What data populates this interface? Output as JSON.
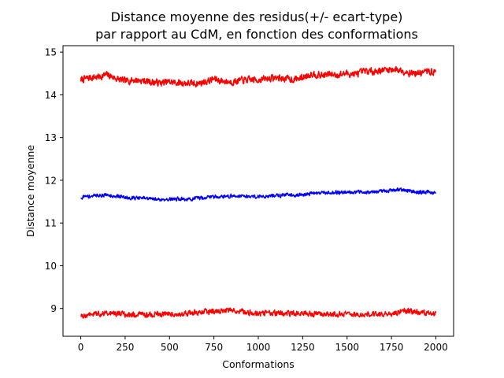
{
  "chart_data": {
    "type": "line",
    "title_lines": [
      "Distance moyenne des residus(+/- ecart-type)",
      "par rapport au CdM, en fonction des conformations"
    ],
    "xlabel": "Conformations",
    "ylabel": "Distance moyenne",
    "xlim": [
      -100,
      2100
    ],
    "ylim": [
      8.35,
      15.15
    ],
    "xticks": [
      0,
      250,
      500,
      750,
      1000,
      1250,
      1500,
      1750,
      2000
    ],
    "xtick_labels": [
      "0",
      "250",
      "500",
      "750",
      "1000",
      "1250",
      "1500",
      "1750",
      "2000"
    ],
    "yticks": [
      9,
      10,
      11,
      12,
      13,
      14,
      15
    ],
    "ytick_labels": [
      "9",
      "10",
      "11",
      "12",
      "13",
      "14",
      "15"
    ],
    "grid": false,
    "legend": "none",
    "x_range": [
      0,
      2000
    ],
    "series": [
      {
        "color": "#ff0000",
        "noise_amplitude": 0.11,
        "x": [
          0,
          50,
          100,
          150,
          200,
          250,
          300,
          350,
          400,
          450,
          500,
          550,
          600,
          650,
          700,
          750,
          800,
          850,
          900,
          950,
          1000,
          1050,
          1100,
          1150,
          1200,
          1250,
          1300,
          1350,
          1400,
          1450,
          1500,
          1550,
          1600,
          1650,
          1700,
          1750,
          1800,
          1850,
          1900,
          1950,
          2000
        ],
        "y": [
          14.35,
          14.4,
          14.42,
          14.47,
          14.38,
          14.32,
          14.35,
          14.33,
          14.3,
          14.28,
          14.3,
          14.28,
          14.27,
          14.26,
          14.3,
          14.37,
          14.32,
          14.3,
          14.34,
          14.35,
          14.35,
          14.38,
          14.4,
          14.38,
          14.36,
          14.4,
          14.5,
          14.45,
          14.48,
          14.47,
          14.5,
          14.48,
          14.55,
          14.55,
          14.58,
          14.6,
          14.58,
          14.52,
          14.5,
          14.55,
          14.52
        ]
      },
      {
        "color": "#0000ff",
        "noise_amplitude": 0.06,
        "x": [
          0,
          50,
          100,
          150,
          200,
          250,
          300,
          350,
          400,
          450,
          500,
          550,
          600,
          650,
          700,
          750,
          800,
          850,
          900,
          950,
          1000,
          1050,
          1100,
          1150,
          1200,
          1250,
          1300,
          1350,
          1400,
          1450,
          1500,
          1550,
          1600,
          1650,
          1700,
          1750,
          1800,
          1850,
          1900,
          1950,
          2000
        ],
        "y": [
          11.6,
          11.63,
          11.65,
          11.66,
          11.63,
          11.6,
          11.59,
          11.58,
          11.56,
          11.55,
          11.56,
          11.57,
          11.55,
          11.57,
          11.6,
          11.62,
          11.62,
          11.63,
          11.64,
          11.62,
          11.62,
          11.63,
          11.64,
          11.66,
          11.66,
          11.65,
          11.7,
          11.7,
          11.72,
          11.71,
          11.73,
          11.72,
          11.73,
          11.72,
          11.74,
          11.77,
          11.78,
          11.76,
          11.72,
          11.72,
          11.7
        ]
      },
      {
        "color": "#ff0000",
        "noise_amplitude": 0.09,
        "x": [
          0,
          50,
          100,
          150,
          200,
          250,
          300,
          350,
          400,
          450,
          500,
          550,
          600,
          650,
          700,
          750,
          800,
          850,
          900,
          950,
          1000,
          1050,
          1100,
          1150,
          1200,
          1250,
          1300,
          1350,
          1400,
          1450,
          1500,
          1550,
          1600,
          1650,
          1700,
          1750,
          1800,
          1850,
          1900,
          1950,
          2000
        ],
        "y": [
          8.82,
          8.85,
          8.88,
          8.9,
          8.88,
          8.86,
          8.85,
          8.85,
          8.86,
          8.87,
          8.88,
          8.86,
          8.9,
          8.91,
          8.93,
          8.92,
          8.95,
          8.95,
          8.92,
          8.91,
          8.88,
          8.9,
          8.9,
          8.88,
          8.88,
          8.9,
          8.88,
          8.87,
          8.87,
          8.87,
          8.86,
          8.86,
          8.85,
          8.86,
          8.86,
          8.88,
          8.93,
          8.93,
          8.9,
          8.88,
          8.87
        ]
      }
    ]
  }
}
